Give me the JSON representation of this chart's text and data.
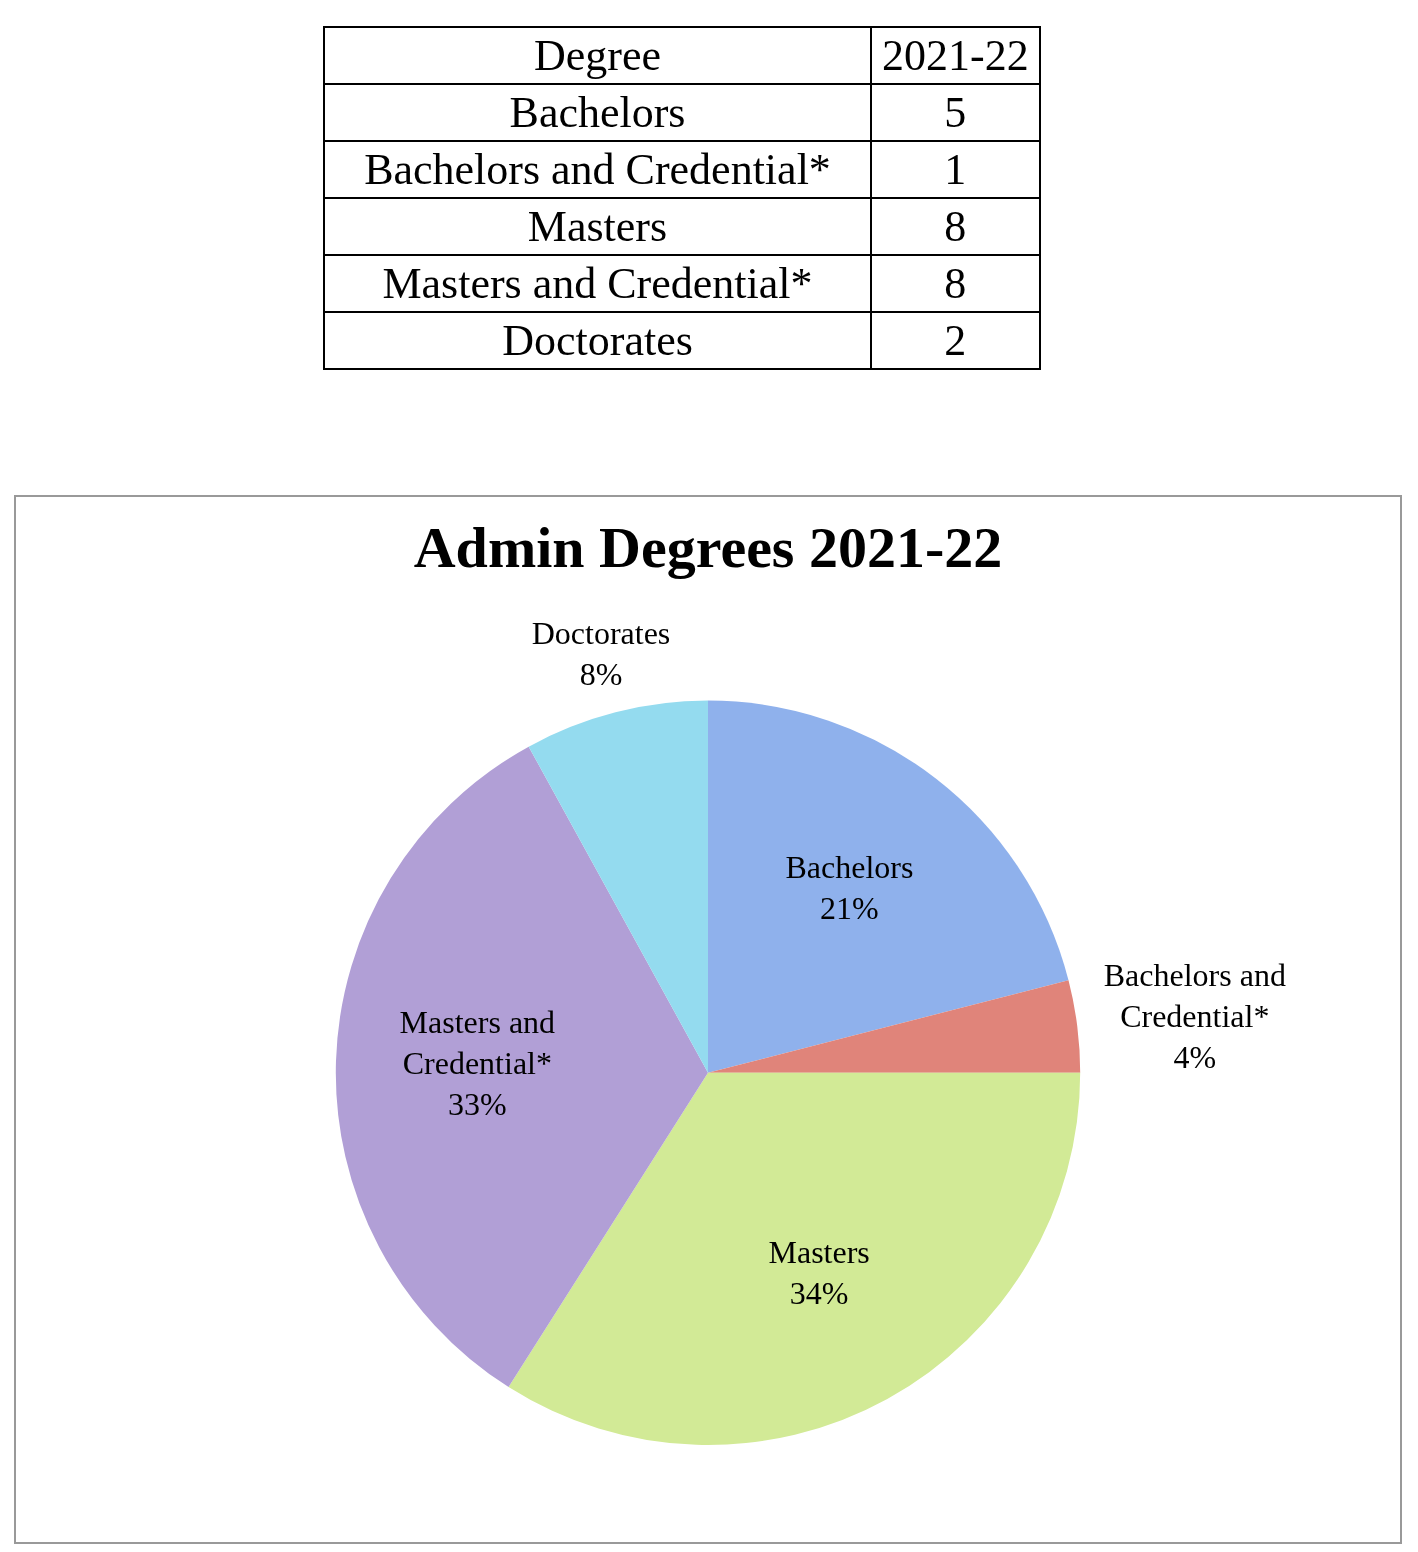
{
  "chart_data": [
    {
      "type": "other",
      "annotations": [
        "Degree",
        "2021-22"
      ],
      "categories": [
        "Bachelors",
        "Bachelors and Credential*",
        "Masters",
        "Masters and Credential*",
        "Doctorates"
      ],
      "values": [
        5,
        1,
        8,
        8,
        2
      ],
      "data_labels": true
    },
    {
      "type": "pie",
      "title": "Admin Degrees 2021-22",
      "categories": [
        "Bachelors",
        "Bachelors and Credential*",
        "Masters",
        "Masters and Credential*",
        "Doctorates"
      ],
      "values": [
        21,
        4,
        34,
        33,
        8
      ],
      "value_labels": [
        "21%",
        "4%",
        "34%",
        "33%",
        "8%"
      ],
      "colors": [
        "#8fb1ec",
        "#e0847a",
        "#d2ea96",
        "#b19fd6",
        "#94dbef"
      ],
      "legend": false
    }
  ]
}
